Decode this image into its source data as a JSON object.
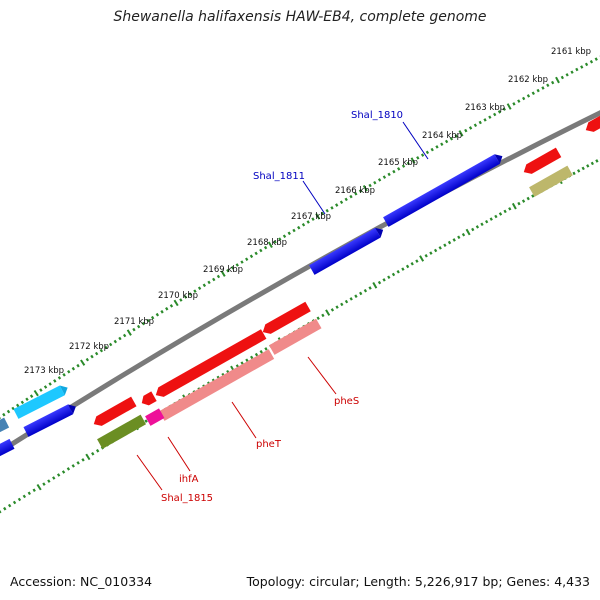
{
  "title": "Shewanella halifaxensis HAW-EB4, complete genome",
  "footer": {
    "accession": "Accession: NC_010334",
    "summary": "Topology: circular; Length: 5,226,917 bp; Genes: 4,433"
  },
  "colors": {
    "backbone": "#808080",
    "tick": "#2a8a2a",
    "forward_gene": "#1010e0",
    "reverse_gene": "#ee1111",
    "rna_gene": "#f08a8a",
    "label_blue": "#0000c0",
    "label_red": "#cc0000"
  },
  "scale_labels": [
    "2161 kbp",
    "2162 kbp",
    "2163 kbp",
    "2164 kbp",
    "2165 kbp",
    "2166 kbp",
    "2167 kbp",
    "2168 kbp",
    "2169 kbp",
    "2170 kbp",
    "2171 kbp",
    "2172 kbp",
    "2173 kbp"
  ],
  "gene_labels": [
    {
      "text": "Shal_1810",
      "color": "#0000c0"
    },
    {
      "text": "Shal_1811",
      "color": "#0000c0"
    },
    {
      "text": "pheS",
      "color": "#cc0000"
    },
    {
      "text": "pheT",
      "color": "#cc0000"
    },
    {
      "text": "ihfA",
      "color": "#cc0000"
    },
    {
      "text": "Shal_1815",
      "color": "#cc0000"
    }
  ]
}
